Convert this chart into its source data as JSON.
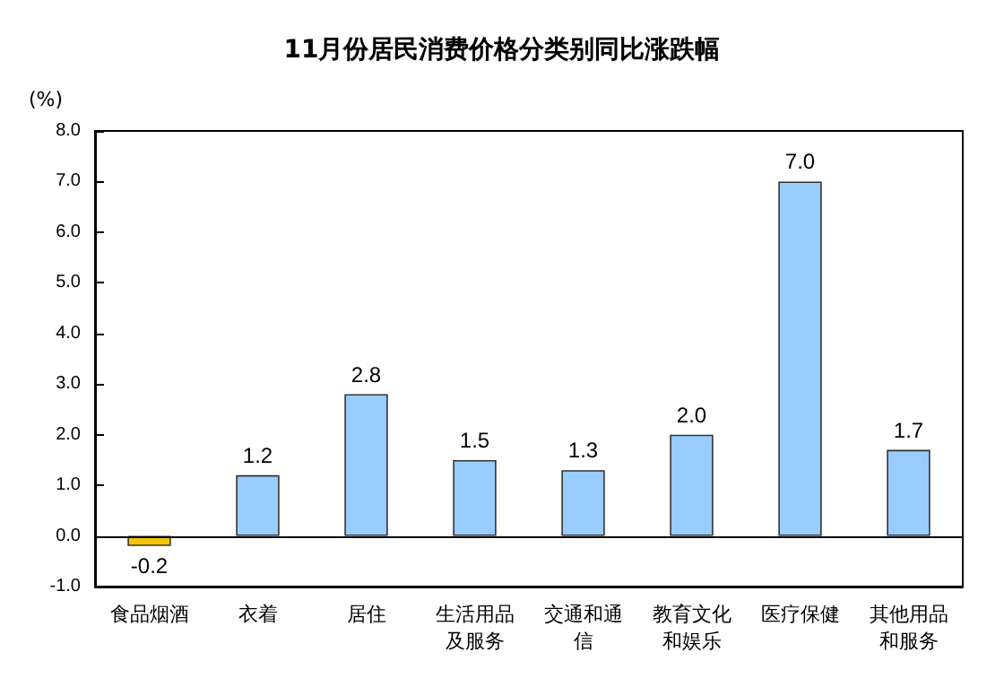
{
  "chart_data": {
    "type": "bar",
    "title": "11月份居民消费价格分类别同比涨跌幅",
    "ylabel": "(%)",
    "categories": [
      "食品烟酒",
      "衣着",
      "居住",
      "生活用品及服务",
      "交通和通信",
      "教育文化和娱乐",
      "医疗保健",
      "其他用品和服务"
    ],
    "values": [
      -0.2,
      1.2,
      2.8,
      1.5,
      1.3,
      2.0,
      7.0,
      1.7
    ],
    "value_labels": [
      "-0.2",
      "1.2",
      "2.8",
      "1.5",
      "1.3",
      "2.0",
      "7.0",
      "1.7"
    ],
    "colors": [
      "#f5c400",
      "#99ccff",
      "#99ccff",
      "#99ccff",
      "#99ccff",
      "#99ccff",
      "#99ccff",
      "#99ccff"
    ],
    "ylim": [
      -1,
      8
    ],
    "yticks": [
      {
        "value": -1,
        "label": "-1.0"
      },
      {
        "value": 0,
        "label": "0.0"
      },
      {
        "value": 1,
        "label": "1.0"
      },
      {
        "value": 2,
        "label": "2.0"
      },
      {
        "value": 3,
        "label": "3.0"
      },
      {
        "value": 4,
        "label": "4.0"
      },
      {
        "value": 5,
        "label": "5.0"
      },
      {
        "value": 6,
        "label": "6.0"
      },
      {
        "value": 7,
        "label": "7.0"
      },
      {
        "value": 8,
        "label": "8.0"
      }
    ],
    "ref_lines": [
      {
        "axis": "y",
        "value": 0,
        "color": "#000000"
      }
    ],
    "grid": false
  }
}
